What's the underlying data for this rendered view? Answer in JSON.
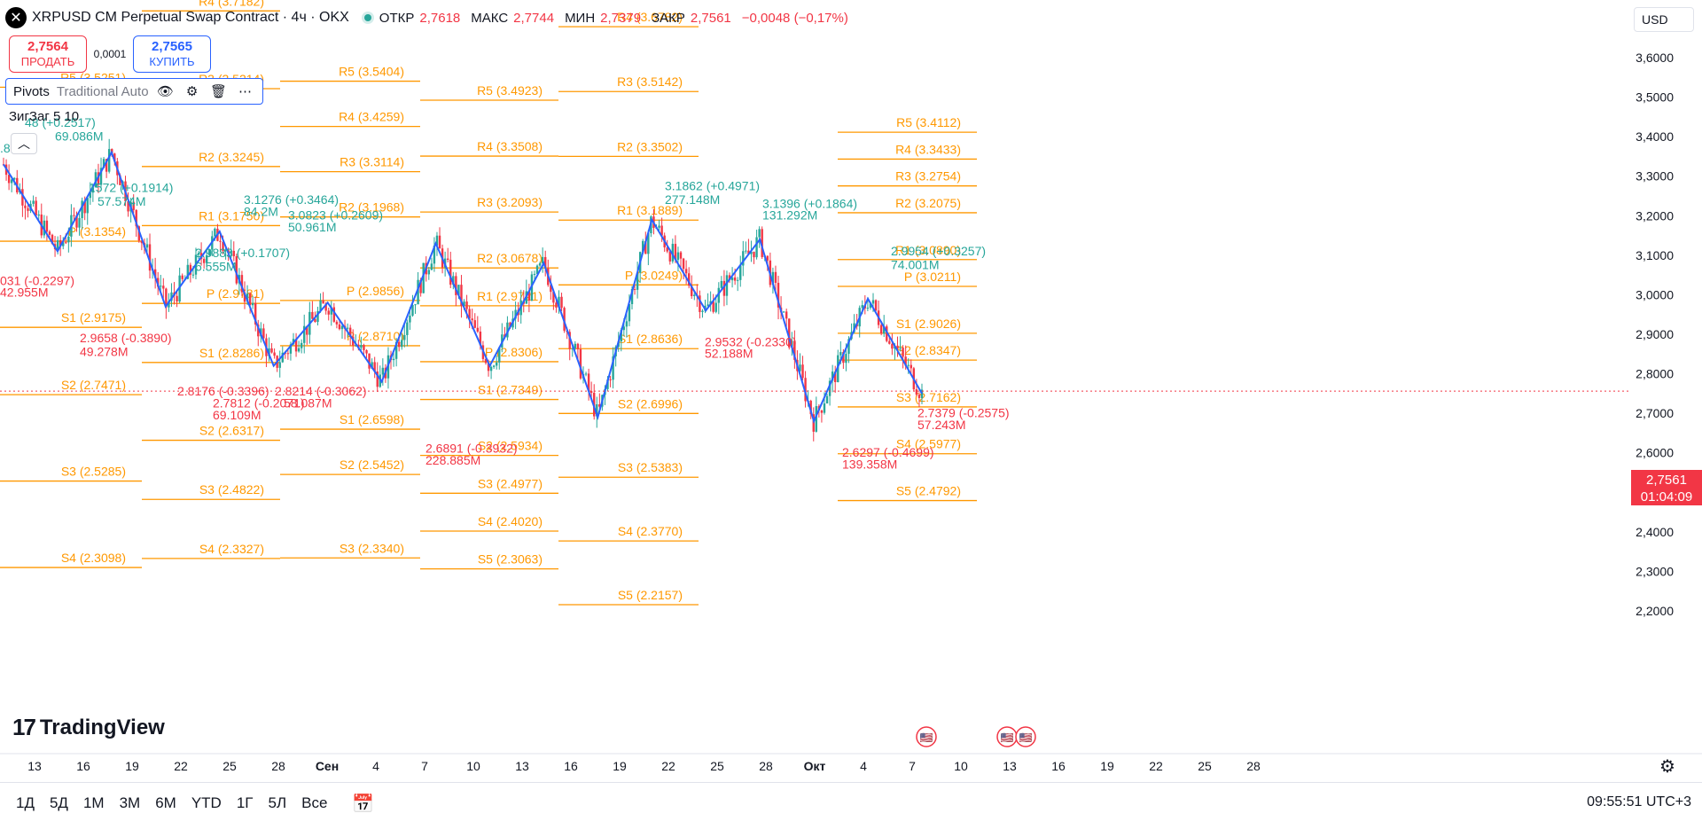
{
  "header": {
    "title": "XRPUSD CM Perpetual Swap Contract · 4ч · OKX",
    "symbol_icon": "close-icon",
    "ohlc": [
      {
        "key": "ОТКР",
        "value": "2,7618"
      },
      {
        "key": "МАКС",
        "value": "2,7744"
      },
      {
        "key": "МИН",
        "value": "2,7379"
      },
      {
        "key": "ЗАКР",
        "value": "2,7561"
      }
    ],
    "change": "−0,0048 (−0,17%)"
  },
  "trade": {
    "sell_price": "2,7564",
    "sell_label": "ПРОДАТЬ",
    "spread": "0,0001",
    "buy_price": "2,7565",
    "buy_label": "КУПИТЬ"
  },
  "indicators": {
    "pivots_name": "Pivots",
    "pivots_args": "Traditional Auto",
    "zigzag": "ЗигЗаг 5 10"
  },
  "currency": "USD",
  "last_price": {
    "value": "2,7561",
    "countdown": "01:04:09"
  },
  "logo": "TradingView",
  "bottom": {
    "periods": [
      "1Д",
      "5Д",
      "1М",
      "3М",
      "6М",
      "YTD",
      "1Г",
      "5Л",
      "Все"
    ],
    "clock": "09:55:51 UTC+3"
  },
  "colors": {
    "up": "#26a69a",
    "down": "#f23645",
    "pivot": "#ff9800",
    "zigzag": "#2962ff"
  },
  "chart_data": {
    "type": "candlestick",
    "yaxis": {
      "ticks": [
        "3,6000",
        "3,5000",
        "3,4000",
        "3,3000",
        "3,2000",
        "3,1000",
        "3,0000",
        "2,9000",
        "2,8000",
        "2,7000",
        "2,6000",
        "2,5000",
        "2,4000",
        "2,3000",
        "2,2000"
      ],
      "ylim": [
        2.2,
        3.65
      ]
    },
    "xaxis": {
      "ticks": [
        "13",
        "16",
        "19",
        "22",
        "25",
        "28",
        "Сен",
        "4",
        "7",
        "10",
        "13",
        "16",
        "19",
        "22",
        "25",
        "28",
        "Окт",
        "4",
        "7",
        "10",
        "13",
        "16",
        "19",
        "22",
        "25",
        "28"
      ]
    },
    "pivot_periods": [
      {
        "levels": [
          {
            "label": "R5 (3.5251)",
            "v": 3.5251
          },
          {
            "label": "P (3.1354)",
            "v": 3.1354
          },
          {
            "label": "S1 (2.9175)",
            "v": 2.9175
          },
          {
            "label": "S2 (2.7471)",
            "v": 2.7471
          },
          {
            "label": "S3 (2.5285)",
            "v": 2.5285
          },
          {
            "label": "S4 (2.3098)",
            "v": 2.3098
          }
        ]
      },
      {
        "levels": [
          {
            "label": "R4 (3.7182)",
            "v": 3.7182
          },
          {
            "label": "R3 (3.5214)",
            "v": 3.5214
          },
          {
            "label": "R2 (3.3245)",
            "v": 3.3245
          },
          {
            "label": "R1 (3.1750)",
            "v": 3.175
          },
          {
            "label": "P (2.9781)",
            "v": 2.9781
          },
          {
            "label": "S1 (2.8286)",
            "v": 2.8286
          },
          {
            "label": "S2 (2.6317)",
            "v": 2.6317
          },
          {
            "label": "S3 (2.4822)",
            "v": 2.4822
          },
          {
            "label": "S4 (2.3327)",
            "v": 2.3327
          }
        ]
      },
      {
        "levels": [
          {
            "label": "R5 (3.5404)",
            "v": 3.5404
          },
          {
            "label": "R4 (3.4259)",
            "v": 3.4259
          },
          {
            "label": "R3 (3.3114)",
            "v": 3.3114
          },
          {
            "label": "R2 (3.1968)",
            "v": 3.1968
          },
          {
            "label": "P (2.9856)",
            "v": 2.9856
          },
          {
            "label": "P (2.8710)",
            "v": 2.871
          },
          {
            "label": "S1 (2.6598)",
            "v": 2.6598
          },
          {
            "label": "S2 (2.5452)",
            "v": 2.5452
          },
          {
            "label": "S3 (2.3340)",
            "v": 2.334
          }
        ]
      },
      {
        "levels": [
          {
            "label": "R5 (3.4923)",
            "v": 3.4923
          },
          {
            "label": "R4 (3.3508)",
            "v": 3.3508
          },
          {
            "label": "R3 (3.2093)",
            "v": 3.2093
          },
          {
            "label": "R2 (3.0678)",
            "v": 3.0678
          },
          {
            "label": "R1 (2.9721)",
            "v": 2.9721
          },
          {
            "label": "P (2.8306)",
            "v": 2.8306
          },
          {
            "label": "S1 (2.7349)",
            "v": 2.7349
          },
          {
            "label": "S2 (2.5934)",
            "v": 2.5934
          },
          {
            "label": "S3 (2.4977)",
            "v": 2.4977
          },
          {
            "label": "S4 (2.4020)",
            "v": 2.402
          },
          {
            "label": "S5 (2.3063)",
            "v": 2.3063
          }
        ]
      },
      {
        "levels": [
          {
            "label": "R4 (3.6782)",
            "v": 3.6782
          },
          {
            "label": "R3 (3.5142)",
            "v": 3.5142
          },
          {
            "label": "R2 (3.3502)",
            "v": 3.3502
          },
          {
            "label": "R1 (3.1889)",
            "v": 3.1889
          },
          {
            "label": "P (3.0249)",
            "v": 3.0249
          },
          {
            "label": "S1 (2.8636)",
            "v": 2.8636
          },
          {
            "label": "S2 (2.6996)",
            "v": 2.6996
          },
          {
            "label": "S3 (2.5383)",
            "v": 2.5383
          },
          {
            "label": "S4 (2.3770)",
            "v": 2.377
          },
          {
            "label": "S5 (2.2157)",
            "v": 2.2157
          }
        ]
      },
      {
        "levels": [
          {
            "label": "R5 (3.4112)",
            "v": 3.4112
          },
          {
            "label": "R4 (3.3433)",
            "v": 3.3433
          },
          {
            "label": "R3 (3.2754)",
            "v": 3.2754
          },
          {
            "label": "R2 (3.2075)",
            "v": 3.2075
          },
          {
            "label": "R1 (3.0890)",
            "v": 3.089
          },
          {
            "label": "P (3.0211)",
            "v": 3.0211
          },
          {
            "label": "S1 (2.9026)",
            "v": 2.9026
          },
          {
            "label": "S2 (2.8347)",
            "v": 2.8347
          },
          {
            "label": "S3 (2.7162)",
            "v": 2.7162
          },
          {
            "label": "S4 (2.5977)",
            "v": 2.5977
          },
          {
            "label": "S5 (2.4792)",
            "v": 2.4792
          }
        ]
      }
    ],
    "zigzag": [
      3.33,
      3.11,
      3.36,
      2.97,
      3.16,
      2.82,
      2.98,
      2.78,
      3.13,
      2.82,
      3.08,
      2.69,
      3.19,
      2.96,
      3.14,
      2.68,
      2.99,
      2.75
    ],
    "annotations": [
      {
        "text": "48 (+0.2517)",
        "v": 3.425,
        "color": "up"
      },
      {
        "text": "69.086M",
        "v": 3.39,
        "color": "up"
      },
      {
        "text": ".881M",
        "v": 3.36,
        "color": "up"
      },
      {
        "text": "1572 (+0.1914)",
        "v": 3.26,
        "color": "up"
      },
      {
        "text": "57.574M",
        "v": 3.225,
        "color": "up"
      },
      {
        "text": "3.1276 (+0.3464)",
        "v": 3.23,
        "color": "up"
      },
      {
        "text": "84.2M",
        "v": 3.2,
        "color": "up"
      },
      {
        "text": "3.0823 (+0.2609)",
        "v": 3.19,
        "color": "up"
      },
      {
        "text": "50.961M",
        "v": 3.16,
        "color": "up"
      },
      {
        "text": "2.9883 (+0.1707)",
        "v": 3.095,
        "color": "up"
      },
      {
        "text": "6.555M",
        "v": 3.06,
        "color": "up"
      },
      {
        "text": "031 (-0.2297)",
        "v": 3.025,
        "color": "down"
      },
      {
        "text": "42.955M",
        "v": 2.995,
        "color": "down"
      },
      {
        "text": "2.9658 (-0.3890)",
        "v": 2.88,
        "color": "down"
      },
      {
        "text": "49.278M",
        "v": 2.845,
        "color": "down"
      },
      {
        "text": "2.8176 (-0.3396)",
        "v": 2.745,
        "color": "down"
      },
      {
        "text": "2.8214 (-0.3062)",
        "v": 2.745,
        "color": "down"
      },
      {
        "text": "2.7812 (-0.2071)",
        "v": 2.715,
        "color": "down"
      },
      {
        "text": "69.109M",
        "v": 2.685,
        "color": "down"
      },
      {
        "text": "58.087M",
        "v": 2.715,
        "color": "down"
      },
      {
        "text": "2.6891 (-0.3932)",
        "v": 2.6,
        "color": "down"
      },
      {
        "text": "228.885M",
        "v": 2.57,
        "color": "down"
      },
      {
        "text": "3.1862 (+0.4971)",
        "v": 3.265,
        "color": "up"
      },
      {
        "text": "277.148M",
        "v": 3.23,
        "color": "up"
      },
      {
        "text": "3.1396 (+0.1864)",
        "v": 3.22,
        "color": "up"
      },
      {
        "text": "131.292M",
        "v": 3.19,
        "color": "up"
      },
      {
        "text": "2.9532 (-0.2330)",
        "v": 2.87,
        "color": "down"
      },
      {
        "text": "52.188M",
        "v": 2.84,
        "color": "down"
      },
      {
        "text": "2.9954 (+0.3257)",
        "v": 3.1,
        "color": "up"
      },
      {
        "text": "74.001M",
        "v": 3.065,
        "color": "up"
      },
      {
        "text": "2.7379 (-0.2575)",
        "v": 2.69,
        "color": "down"
      },
      {
        "text": "57.243M",
        "v": 2.66,
        "color": "down"
      },
      {
        "text": "2.6297 (-0.4699)",
        "v": 2.59,
        "color": "down"
      },
      {
        "text": "139.358M",
        "v": 2.56,
        "color": "down"
      }
    ],
    "last": 2.7561
  }
}
